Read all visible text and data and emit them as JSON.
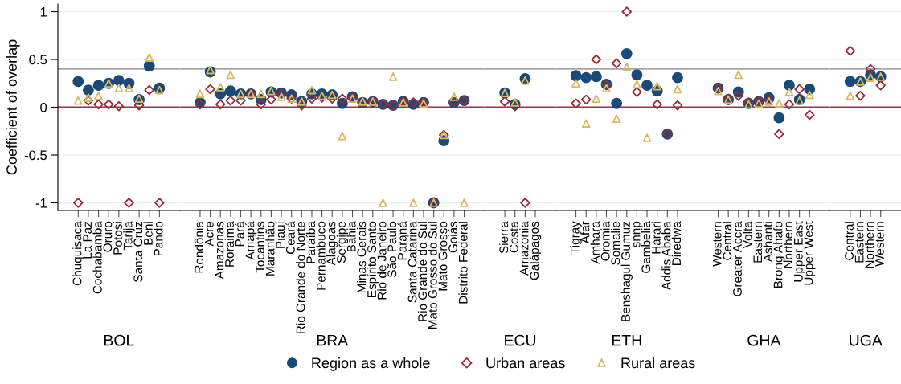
{
  "chart_data": [
    {
      "type": "scatter",
      "xlabel": "BOL",
      "ylabel": "Coefficient of overlap",
      "ylim": [
        -1.08,
        1.08
      ],
      "yticks": [
        -1,
        -0.5,
        0,
        0.5,
        1
      ],
      "grid": "y",
      "legend": "bottom",
      "ref_lines": [
        {
          "axis": "y",
          "value": 0,
          "color": "#b8254a"
        },
        {
          "axis": "y",
          "value": 0.4,
          "color": "#a6a6a6"
        }
      ],
      "categories": [
        "Chuquisaca",
        "La Paz",
        "Cochabamba",
        "Oruro",
        "Potosi",
        "Tarija",
        "Santa Cruz",
        "Beni",
        "Pando"
      ],
      "series": [
        {
          "name": "Region as a whole",
          "color": "#1a4a78",
          "marker": "circle",
          "values": [
            0.27,
            0.18,
            0.23,
            0.25,
            0.28,
            0.25,
            0.08,
            0.43,
            0.2
          ]
        },
        {
          "name": "Urban areas",
          "color": "#9b2a3a",
          "marker": "diamond",
          "values": [
            -1,
            0.07,
            0.03,
            0.03,
            0.01,
            -1,
            0.02,
            0.18,
            -1
          ]
        },
        {
          "name": "Rural areas",
          "color": "#d9b85c",
          "marker": "triangle",
          "values": [
            0.07,
            0.1,
            0.12,
            0.25,
            0.2,
            0.2,
            0.09,
            0.52,
            0.18
          ]
        }
      ]
    },
    {
      "type": "scatter",
      "xlabel": "BRA",
      "ylim": [
        -1.08,
        1.08
      ],
      "yticks": [
        -1,
        -0.5,
        0,
        0.5,
        1
      ],
      "grid": "y",
      "tick_labels": "x",
      "ref_lines": [
        {
          "axis": "y",
          "value": 0,
          "color": "#b8254a"
        },
        {
          "axis": "y",
          "value": 0.4,
          "color": "#a6a6a6"
        }
      ],
      "categories": [
        "Rondônia",
        "Acre",
        "Amazonas",
        "Roraima",
        "Pará",
        "Amapá",
        "Tocantins",
        "Maranhão",
        "Piauí",
        "Ceará",
        "Rio Grande do Norte",
        "Paraíba",
        "Pernambuco",
        "Alagoas",
        "Sergipe",
        "Bahia",
        "Minas Gerais",
        "Espírito Santo",
        "Rio de Janeiro",
        "São Paulo",
        "Paraná",
        "Santa Catarina",
        "Rio Grande do Sul",
        "Mato Grosso do Sul",
        "Mato Grosso",
        "Goiás",
        "Distrito Federal"
      ],
      "series": [
        {
          "name": "Region as a whole",
          "color": "#1a4a78",
          "marker": "circle",
          "values": [
            0.05,
            0.37,
            0.14,
            0.17,
            0.14,
            0.14,
            0.08,
            0.16,
            0.15,
            0.13,
            0.06,
            0.14,
            0.14,
            0.13,
            0.04,
            0.11,
            0.05,
            0.06,
            0.03,
            0.02,
            0.06,
            0.03,
            0.05,
            -1,
            -0.35,
            0.05,
            0.07
          ]
        },
        {
          "name": "Urban areas",
          "color": "#9b2a3a",
          "marker": "diamond",
          "values": [
            0.03,
            0.19,
            0.03,
            0.07,
            0.07,
            0.14,
            0.03,
            0.08,
            0.14,
            0.09,
            0.02,
            0.09,
            0.1,
            0.09,
            0.09,
            0.1,
            0.04,
            0.06,
            0.03,
            0.02,
            0.06,
            0.05,
            0.05,
            -1,
            -0.29,
            0.05,
            0.07
          ]
        },
        {
          "name": "Rural areas",
          "color": "#d9b85c",
          "marker": "triangle",
          "values": [
            0.14,
            0.39,
            0.21,
            0.34,
            0.14,
            0.14,
            0.14,
            0.17,
            0.11,
            0.09,
            0.06,
            0.18,
            0.12,
            0.13,
            -0.3,
            0.09,
            0.06,
            0.06,
            -1,
            0.32,
            0.05,
            -1,
            0.04,
            -1,
            -0.29,
            0.11,
            -1
          ]
        }
      ]
    },
    {
      "type": "scatter",
      "xlabel": "ECU",
      "ylim": [
        -1.08,
        1.08
      ],
      "yticks": [
        -1,
        -0.5,
        0,
        0.5,
        1
      ],
      "grid": "y",
      "tick_labels": "x",
      "ref_lines": [
        {
          "axis": "y",
          "value": 0,
          "color": "#b8254a"
        },
        {
          "axis": "y",
          "value": 0.4,
          "color": "#a6a6a6"
        }
      ],
      "categories": [
        "Sierra",
        "Costa",
        "Amazonia",
        "Galápagos"
      ],
      "series": [
        {
          "name": "Region as a whole",
          "color": "#1a4a78",
          "marker": "circle",
          "values": [
            0.15,
            0.03,
            0.3,
            null
          ]
        },
        {
          "name": "Urban areas",
          "color": "#9b2a3a",
          "marker": "diamond",
          "values": [
            0.06,
            0.01,
            -1,
            null
          ]
        },
        {
          "name": "Rural areas",
          "color": "#d9b85c",
          "marker": "triangle",
          "values": [
            0.15,
            0.05,
            0.28,
            null
          ]
        }
      ]
    },
    {
      "type": "scatter",
      "xlabel": "ETH",
      "ylim": [
        -1.08,
        1.08
      ],
      "yticks": [
        -1,
        -0.5,
        0,
        0.5,
        1
      ],
      "grid": "y",
      "tick_labels": "x",
      "ref_lines": [
        {
          "axis": "y",
          "value": 0,
          "color": "#b8254a"
        },
        {
          "axis": "y",
          "value": 0.4,
          "color": "#a6a6a6"
        }
      ],
      "categories": [
        "Tigray",
        "Afar",
        "Amhara",
        "Oromia",
        "Somalie",
        "Benshagul Gumuz",
        "snnp",
        "Gambelia",
        "Harari",
        "Addis Ababa",
        "Diredwa"
      ],
      "series": [
        {
          "name": "Region as a whole",
          "color": "#1a4a78",
          "marker": "circle",
          "values": [
            0.33,
            0.31,
            0.32,
            0.24,
            0.04,
            0.56,
            0.34,
            0.23,
            0.17,
            -0.28,
            0.31
          ]
        },
        {
          "name": "Urban areas",
          "color": "#9b2a3a",
          "marker": "diamond",
          "values": [
            0.04,
            0.08,
            0.5,
            0.23,
            0.46,
            1,
            0.16,
            null,
            0.03,
            -0.28,
            0.02
          ]
        },
        {
          "name": "Rural areas",
          "color": "#d9b85c",
          "marker": "triangle",
          "values": [
            0.25,
            -0.17,
            0.09,
            0.2,
            -0.12,
            0.42,
            0.24,
            -0.32,
            0.22,
            null,
            0.19
          ]
        }
      ]
    },
    {
      "type": "scatter",
      "xlabel": "GHA",
      "ylim": [
        -1.08,
        1.08
      ],
      "yticks": [
        -1,
        -0.5,
        0,
        0.5,
        1
      ],
      "grid": "y",
      "tick_labels": "x",
      "ref_lines": [
        {
          "axis": "y",
          "value": 0,
          "color": "#b8254a"
        },
        {
          "axis": "y",
          "value": 0.4,
          "color": "#a6a6a6"
        }
      ],
      "categories": [
        "Western",
        "Central",
        "Greater Accra",
        "Volta",
        "Eastern",
        "Ashanti",
        "Brong Ahafo",
        "Northern",
        "Upper East",
        "Upper West"
      ],
      "series": [
        {
          "name": "Region as a whole",
          "color": "#1a4a78",
          "marker": "circle",
          "values": [
            0.2,
            0.08,
            0.16,
            0.04,
            0.06,
            0.1,
            -0.11,
            0.23,
            0.08,
            0.19
          ]
        },
        {
          "name": "Urban areas",
          "color": "#9b2a3a",
          "marker": "diamond",
          "values": [
            0.2,
            0.09,
            0.12,
            0.05,
            0.07,
            0.07,
            -0.28,
            0.03,
            0.19,
            -0.08
          ]
        },
        {
          "name": "Rural areas",
          "color": "#d9b85c",
          "marker": "triangle",
          "values": [
            0.17,
            0.08,
            0.34,
            0.03,
            0.04,
            0.06,
            0.04,
            0.16,
            0.07,
            0.13
          ]
        }
      ]
    },
    {
      "type": "scatter",
      "xlabel": "UGA",
      "ylim": [
        -1.08,
        1.08
      ],
      "yticks": [
        -1,
        -0.5,
        0,
        0.5,
        1
      ],
      "grid": "y",
      "tick_labels": "x",
      "ref_lines": [
        {
          "axis": "y",
          "value": 0,
          "color": "#b8254a"
        },
        {
          "axis": "y",
          "value": 0.4,
          "color": "#a6a6a6"
        }
      ],
      "categories": [
        "Central",
        "Eastern",
        "Northern",
        "Western"
      ],
      "series": [
        {
          "name": "Region as a whole",
          "color": "#1a4a78",
          "marker": "circle",
          "values": [
            0.27,
            0.27,
            0.34,
            0.32
          ]
        },
        {
          "name": "Urban areas",
          "color": "#9b2a3a",
          "marker": "diamond",
          "values": [
            0.59,
            0.12,
            0.4,
            0.23
          ]
        },
        {
          "name": "Rural areas",
          "color": "#d9b85c",
          "marker": "triangle",
          "values": [
            0.12,
            0.27,
            0.31,
            0.32
          ]
        }
      ]
    }
  ]
}
